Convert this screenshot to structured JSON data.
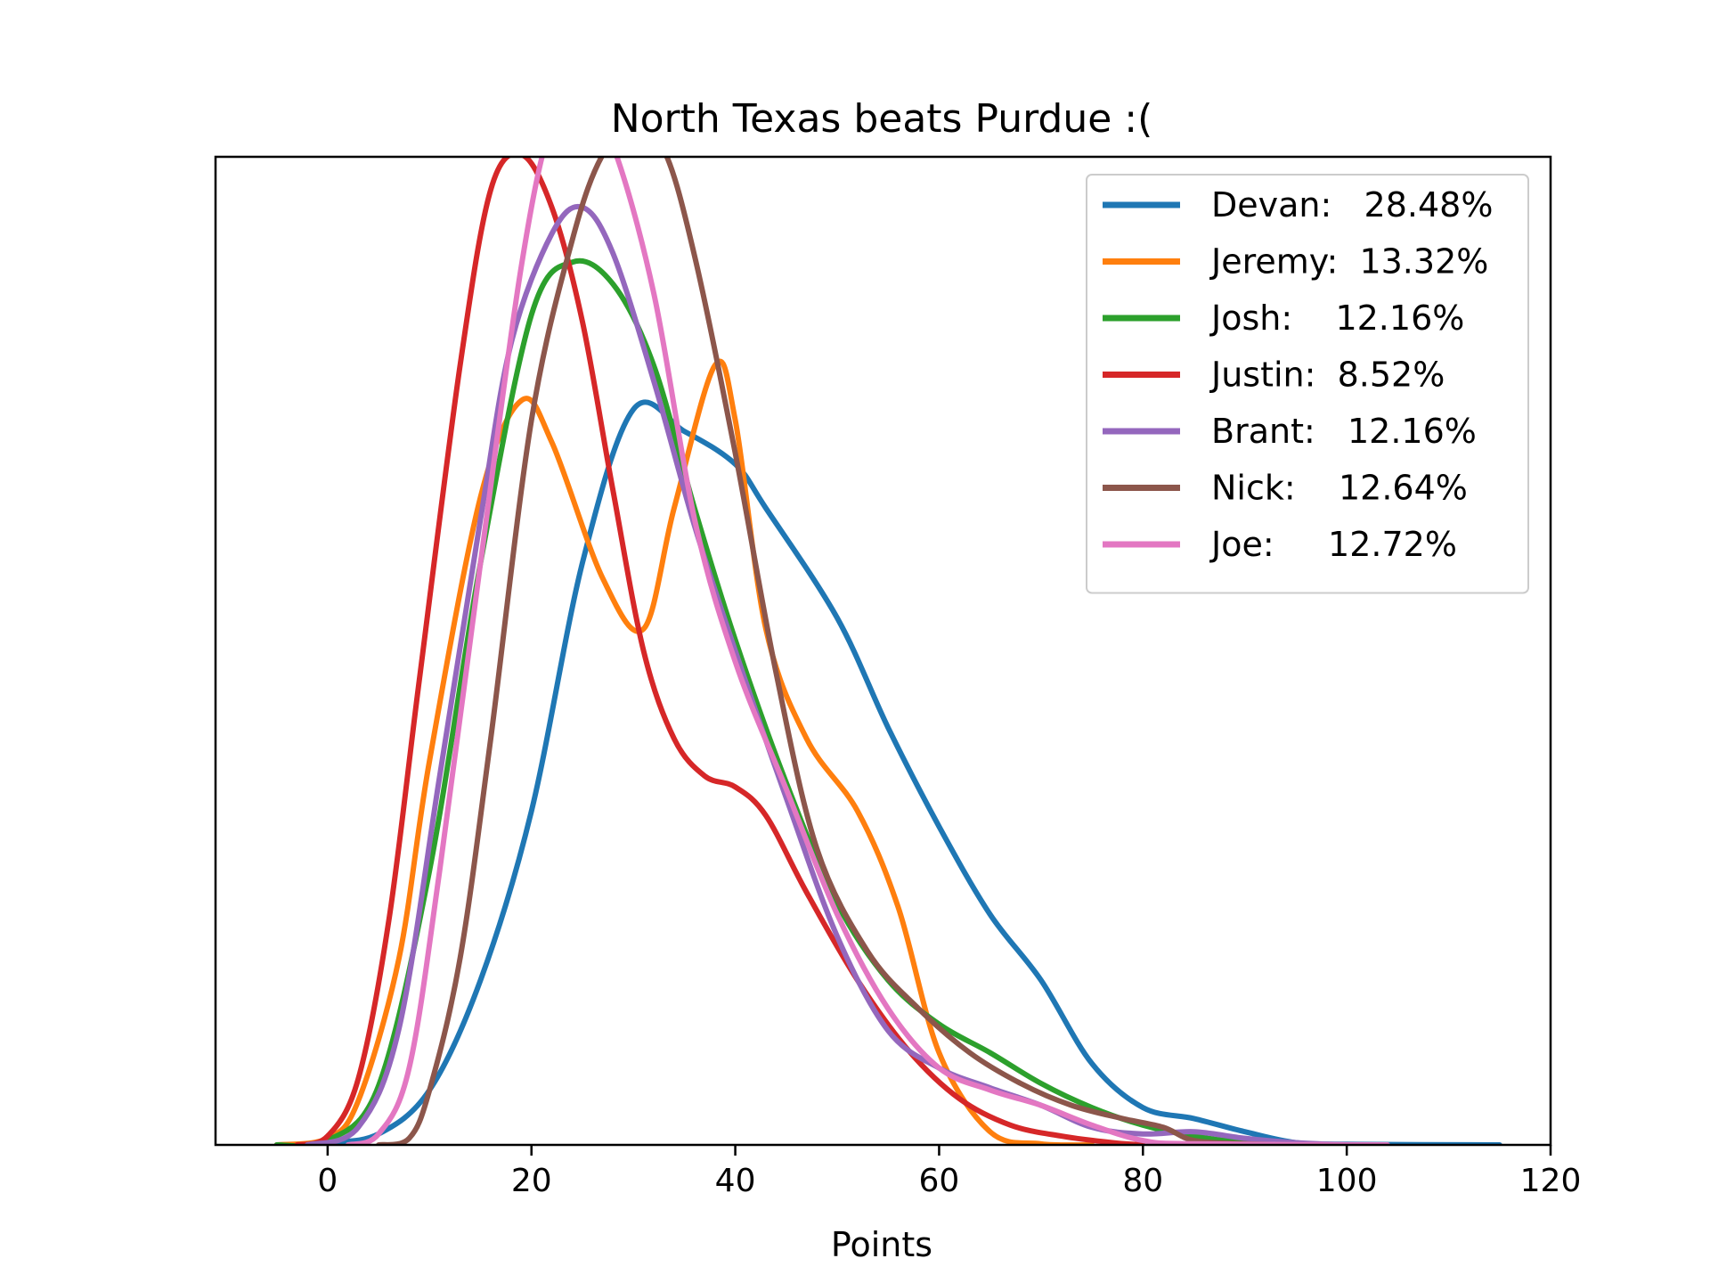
{
  "chart_data": {
    "type": "line",
    "title": "North Texas beats Purdue :(",
    "xlabel": "Points",
    "ylabel": "",
    "xlim": [
      -11,
      120
    ],
    "ylim": [
      0,
      0.045
    ],
    "xticks": [
      0,
      20,
      40,
      60,
      80,
      100,
      120
    ],
    "yticks_visible": false,
    "grid": false,
    "legend_position": "top-right",
    "series": [
      {
        "name": "Devan:   28.48%",
        "color": "#1f77b4",
        "points": [
          [
            -5,
            0
          ],
          [
            0,
            0.0001
          ],
          [
            5,
            0.0005
          ],
          [
            10,
            0.0025
          ],
          [
            15,
            0.0075
          ],
          [
            20,
            0.0152
          ],
          [
            25,
            0.0265
          ],
          [
            30,
            0.0335
          ],
          [
            35,
            0.0325
          ],
          [
            40,
            0.031
          ],
          [
            43,
            0.029
          ],
          [
            50,
            0.024
          ],
          [
            55,
            0.019
          ],
          [
            60,
            0.0145
          ],
          [
            65,
            0.0105
          ],
          [
            70,
            0.0075
          ],
          [
            75,
            0.0037
          ],
          [
            80,
            0.0017
          ],
          [
            85,
            0.0012
          ],
          [
            90,
            0.0006
          ],
          [
            95,
            0.0001
          ],
          [
            100,
            3e-05
          ],
          [
            115,
            0
          ]
        ]
      },
      {
        "name": "Jeremy:  13.32%",
        "color": "#ff7f0e",
        "points": [
          [
            -5,
            0
          ],
          [
            0,
            0.0003
          ],
          [
            3,
            0.002
          ],
          [
            7,
            0.0085
          ],
          [
            10,
            0.0175
          ],
          [
            15,
            0.0295
          ],
          [
            19,
            0.0339
          ],
          [
            22,
            0.032
          ],
          [
            27,
            0.0258
          ],
          [
            31,
            0.0235
          ],
          [
            34,
            0.029
          ],
          [
            38,
            0.0355
          ],
          [
            40,
            0.033
          ],
          [
            43,
            0.0235
          ],
          [
            47,
            0.0185
          ],
          [
            52,
            0.0152
          ],
          [
            56,
            0.0108
          ],
          [
            60,
            0.0042
          ],
          [
            65,
            0.0006
          ],
          [
            70,
            5e-05
          ],
          [
            75,
            0
          ]
        ]
      },
      {
        "name": "Josh:    12.16%",
        "color": "#2ca02c",
        "points": [
          [
            -5,
            0
          ],
          [
            0,
            0.0002
          ],
          [
            5,
            0.0027
          ],
          [
            10,
            0.0125
          ],
          [
            15,
            0.0265
          ],
          [
            20,
            0.0378
          ],
          [
            24,
            0.0402
          ],
          [
            28,
            0.0392
          ],
          [
            32,
            0.0355
          ],
          [
            36,
            0.029
          ],
          [
            40,
            0.023
          ],
          [
            45,
            0.0165
          ],
          [
            50,
            0.011
          ],
          [
            55,
            0.0075
          ],
          [
            60,
            0.0055
          ],
          [
            65,
            0.0042
          ],
          [
            70,
            0.0028
          ],
          [
            75,
            0.0017
          ],
          [
            80,
            0.0009
          ],
          [
            85,
            0.0004
          ],
          [
            90,
            0.0001
          ],
          [
            95,
            0
          ]
        ]
      },
      {
        "name": "Justin:  8.52%",
        "color": "#d62728",
        "points": [
          [
            -3,
            0
          ],
          [
            0,
            0.0004
          ],
          [
            3,
            0.003
          ],
          [
            6,
            0.0102
          ],
          [
            9,
            0.0212
          ],
          [
            13,
            0.0355
          ],
          [
            16,
            0.0435
          ],
          [
            19,
            0.0451
          ],
          [
            22,
            0.0427
          ],
          [
            25,
            0.0375
          ],
          [
            28,
            0.0298
          ],
          [
            31,
            0.0225
          ],
          [
            34,
            0.0185
          ],
          [
            37,
            0.0168
          ],
          [
            40,
            0.0163
          ],
          [
            43,
            0.015
          ],
          [
            47,
            0.0115
          ],
          [
            52,
            0.0075
          ],
          [
            57,
            0.0043
          ],
          [
            62,
            0.0021
          ],
          [
            67,
            0.0009
          ],
          [
            72,
            0.0004
          ],
          [
            77,
            0.0001
          ],
          [
            80,
            0
          ]
        ]
      },
      {
        "name": "Brant:   12.16%",
        "color": "#9467bd",
        "points": [
          [
            -2,
            0
          ],
          [
            3,
            0.0008
          ],
          [
            7,
            0.0053
          ],
          [
            11,
            0.0168
          ],
          [
            15,
            0.0285
          ],
          [
            18,
            0.0365
          ],
          [
            22,
            0.0415
          ],
          [
            25,
            0.0427
          ],
          [
            28,
            0.0406
          ],
          [
            32,
            0.0348
          ],
          [
            36,
            0.0282
          ],
          [
            40,
            0.0225
          ],
          [
            45,
            0.0158
          ],
          [
            50,
            0.0095
          ],
          [
            55,
            0.0052
          ],
          [
            60,
            0.0035
          ],
          [
            65,
            0.0026
          ],
          [
            70,
            0.0018
          ],
          [
            75,
            0.0008
          ],
          [
            80,
            0.0005
          ],
          [
            85,
            0.0006
          ],
          [
            90,
            0.0003
          ],
          [
            95,
            0.0001
          ],
          [
            100,
            0
          ]
        ]
      },
      {
        "name": "Nick:    12.64%",
        "color": "#8c564b",
        "points": [
          [
            5,
            0
          ],
          [
            8,
            0.0003
          ],
          [
            10,
            0.0025
          ],
          [
            13,
            0.0085
          ],
          [
            16,
            0.0185
          ],
          [
            20,
            0.033
          ],
          [
            24,
            0.0412
          ],
          [
            27,
            0.0451
          ],
          [
            30,
            0.0462
          ],
          [
            33,
            0.0453
          ],
          [
            36,
            0.0405
          ],
          [
            40,
            0.0315
          ],
          [
            44,
            0.0215
          ],
          [
            48,
            0.0135
          ],
          [
            53,
            0.0088
          ],
          [
            58,
            0.0062
          ],
          [
            63,
            0.0042
          ],
          [
            68,
            0.0028
          ],
          [
            73,
            0.0018
          ],
          [
            78,
            0.0012
          ],
          [
            82,
            0.0008
          ],
          [
            85,
            0.0002
          ],
          [
            90,
            5e-05
          ],
          [
            95,
            0
          ]
        ]
      },
      {
        "name": "Joe:     12.72%",
        "color": "#e377c2",
        "points": [
          [
            2,
            0
          ],
          [
            5,
            0.0005
          ],
          [
            8,
            0.0035
          ],
          [
            11,
            0.0125
          ],
          [
            15,
            0.0265
          ],
          [
            19,
            0.04
          ],
          [
            22,
            0.0465
          ],
          [
            25,
            0.0475
          ],
          [
            28,
            0.0455
          ],
          [
            32,
            0.0388
          ],
          [
            36,
            0.0285
          ],
          [
            40,
            0.022
          ],
          [
            45,
            0.0162
          ],
          [
            50,
            0.0105
          ],
          [
            55,
            0.0062
          ],
          [
            60,
            0.0035
          ],
          [
            65,
            0.0025
          ],
          [
            70,
            0.0018
          ],
          [
            75,
            0.0009
          ],
          [
            80,
            0.0002
          ],
          [
            85,
            5e-05
          ],
          [
            104,
            0
          ]
        ]
      }
    ]
  }
}
